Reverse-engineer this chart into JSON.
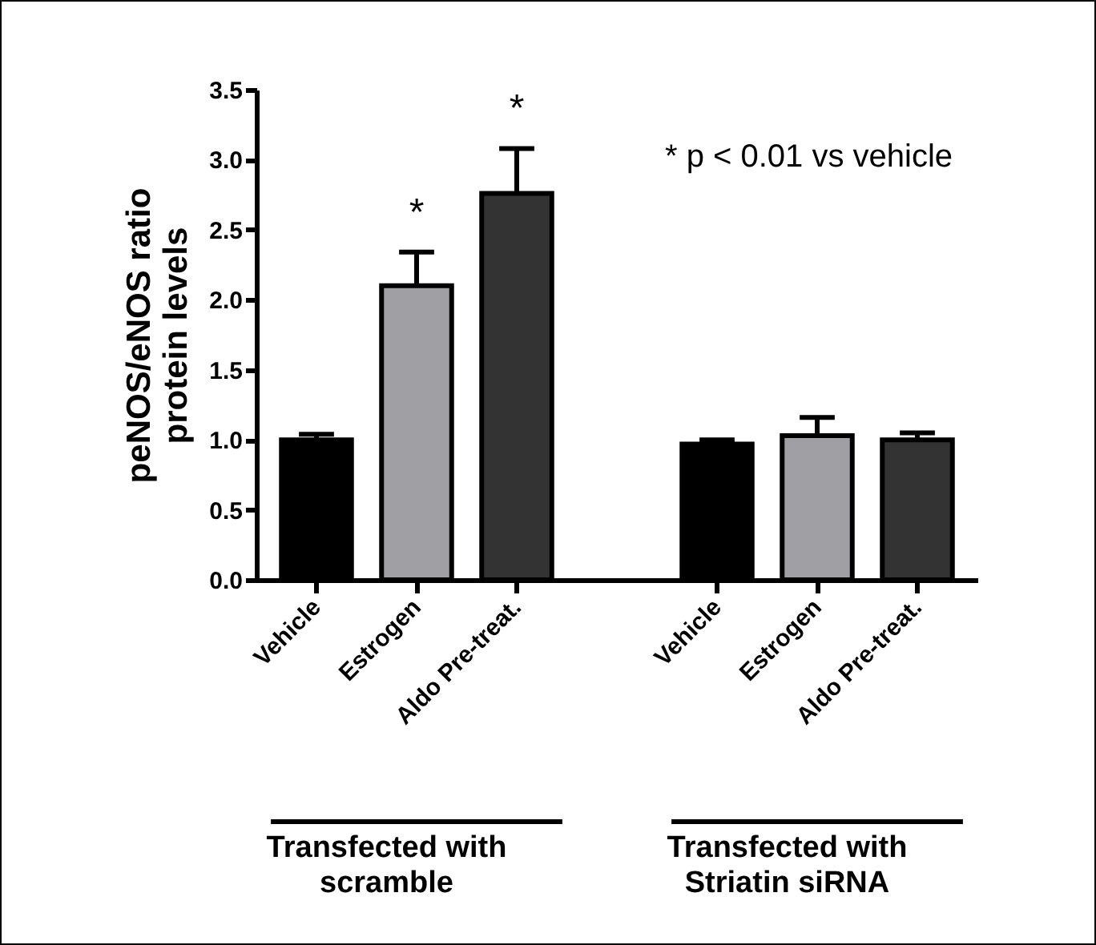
{
  "chart_data": {
    "type": "bar",
    "ylabel": "peNOS/eNOS ratio\nprotein levels",
    "categories": [
      "Vehicle",
      "Estrogen",
      "Aldo Pre-treat.",
      null,
      "Vehicle",
      "Estrogen",
      "Aldo Pre-treat."
    ],
    "values": [
      1.0,
      2.1,
      2.76,
      null,
      0.97,
      1.03,
      1.0
    ],
    "colors": [
      "#000000",
      "#a0a0a4",
      "#333333",
      null,
      "#000000",
      "#a0a0a4",
      "#333333"
    ],
    "errors": [
      [
        1.0,
        1.04
      ],
      [
        2.1,
        2.34
      ],
      [
        2.76,
        3.08
      ],
      null,
      [
        0.97,
        1.0
      ],
      [
        1.03,
        1.16
      ],
      [
        1.0,
        1.05
      ]
    ],
    "ylim": [
      0,
      3.5
    ],
    "yticks": [
      {
        "value": 0,
        "label": "0.0"
      },
      0.5,
      {
        "value": 1,
        "label": "1.0"
      },
      1.5,
      {
        "value": 2,
        "label": "2.0"
      },
      2.5,
      {
        "value": 3,
        "label": "3.0"
      },
      3.5
    ],
    "grid": false,
    "annotations": [
      "* p < 0.01 vs vehicle",
      {
        "text": "*",
        "x": "Estrogen",
        "y": 2.34
      },
      {
        "text": "*",
        "x": "Aldo Pre-treat.",
        "y": 3.08
      },
      "Transfected with\nscramble",
      "Transfected with\nStriatin siRNA"
    ]
  }
}
